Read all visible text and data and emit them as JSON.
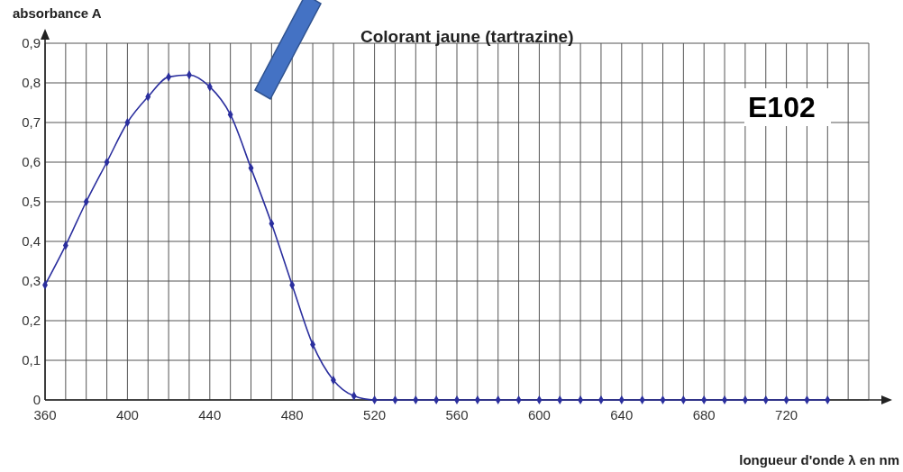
{
  "chart_data": {
    "type": "line",
    "title": "Colorant jaune (tartrazine)",
    "xlabel": "longueur d'onde λ en nm",
    "ylabel": "absorbance A",
    "annotations": [
      "E102"
    ],
    "x": [
      360,
      370,
      380,
      390,
      400,
      410,
      420,
      430,
      440,
      450,
      460,
      470,
      480,
      490,
      500,
      510,
      520,
      530,
      540,
      550,
      560,
      570,
      580,
      590,
      600,
      610,
      620,
      630,
      640,
      650,
      660,
      670,
      680,
      690,
      700,
      710,
      720,
      730,
      740
    ],
    "series": [
      {
        "color": "#2b2f9e",
        "values": [
          0.29,
          0.39,
          0.5,
          0.6,
          0.7,
          0.765,
          0.815,
          0.82,
          0.79,
          0.72,
          0.585,
          0.445,
          0.29,
          0.14,
          0.05,
          0.01,
          0,
          0,
          0,
          0,
          0,
          0,
          0,
          0,
          0,
          0,
          0,
          0,
          0,
          0,
          0,
          0,
          0,
          0,
          0,
          0,
          0,
          0,
          0
        ]
      }
    ],
    "xlim": [
      360,
      760
    ],
    "xticks": [
      360,
      {
        "value": 370,
        "label": null
      },
      {
        "value": 380,
        "label": null
      },
      {
        "value": 390,
        "label": null
      },
      400,
      {
        "value": 410,
        "label": null
      },
      {
        "value": 420,
        "label": null
      },
      {
        "value": 430,
        "label": null
      },
      440,
      {
        "value": 450,
        "label": null
      },
      {
        "value": 460,
        "label": null
      },
      {
        "value": 470,
        "label": null
      },
      480,
      {
        "value": 490,
        "label": null
      },
      {
        "value": 500,
        "label": null
      },
      {
        "value": 510,
        "label": null
      },
      520,
      {
        "value": 530,
        "label": null
      },
      {
        "value": 540,
        "label": null
      },
      {
        "value": 550,
        "label": null
      },
      560,
      {
        "value": 570,
        "label": null
      },
      {
        "value": 580,
        "label": null
      },
      {
        "value": 590,
        "label": null
      },
      600,
      {
        "value": 610,
        "label": null
      },
      {
        "value": 620,
        "label": null
      },
      {
        "value": 630,
        "label": null
      },
      640,
      {
        "value": 650,
        "label": null
      },
      {
        "value": 660,
        "label": null
      },
      {
        "value": 670,
        "label": null
      },
      680,
      {
        "value": 690,
        "label": null
      },
      {
        "value": 700,
        "label": null
      },
      {
        "value": 710,
        "label": null
      },
      720,
      {
        "value": 730,
        "label": null
      },
      {
        "value": 740,
        "label": null
      },
      {
        "value": 750,
        "label": null
      },
      {
        "value": 760,
        "label": null
      }
    ],
    "ylim": [
      0,
      0.9
    ],
    "yticks": [
      0,
      {
        "value": 0.1,
        "label": "0,1"
      },
      {
        "value": 0.2,
        "label": "0,2"
      },
      {
        "value": 0.3,
        "label": "0,3"
      },
      {
        "value": 0.4,
        "label": "0,4"
      },
      {
        "value": 0.5,
        "label": "0,5"
      },
      {
        "value": 0.6,
        "label": "0,6"
      },
      {
        "value": 0.7,
        "label": "0,7"
      },
      {
        "value": 0.8,
        "label": "0,8"
      },
      {
        "value": 0.9,
        "label": "0,9"
      }
    ],
    "grid": true,
    "marker": "diamond",
    "line_style": "solid"
  }
}
